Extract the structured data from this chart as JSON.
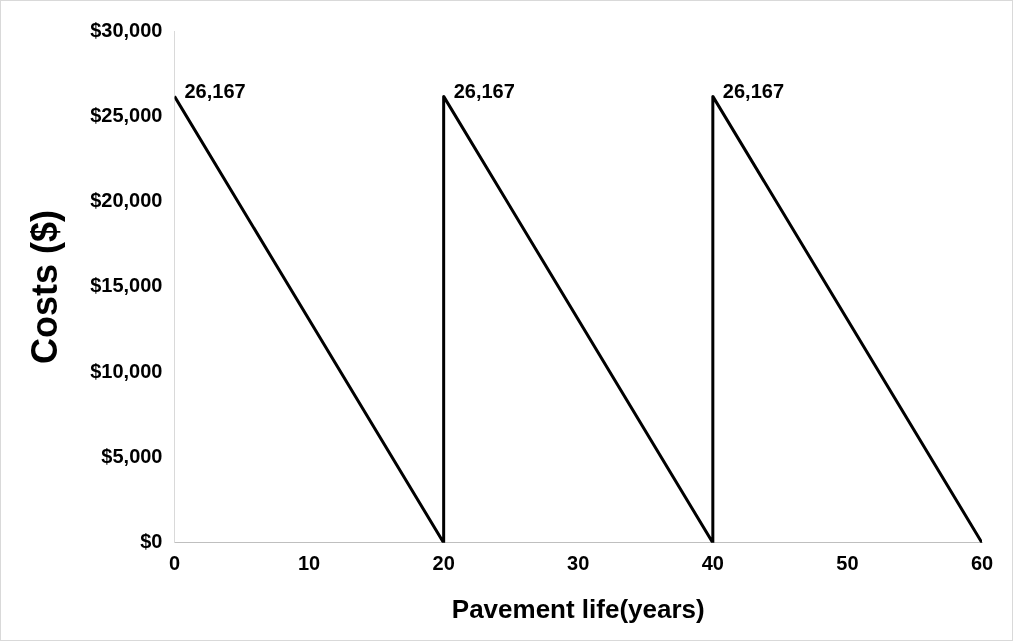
{
  "chart_data": {
    "type": "line",
    "xlabel": "Pavement life(years)",
    "ylabel": "Costs ($)",
    "x": [
      0,
      20,
      20,
      40,
      40,
      60
    ],
    "series": [
      {
        "color": "#000000",
        "values": [
          26167,
          0,
          26167,
          0,
          26167,
          0
        ]
      }
    ],
    "xlim": [
      0,
      60
    ],
    "xticks": [
      0,
      10,
      20,
      30,
      40,
      50,
      60
    ],
    "ylim": [
      0,
      30000
    ],
    "yticks": [
      {
        "value": 0,
        "label": "$0"
      },
      {
        "value": 5000,
        "label": "$5,000"
      },
      {
        "value": 10000,
        "label": "$10,000"
      },
      {
        "value": 15000,
        "label": "$15,000"
      },
      {
        "value": 20000,
        "label": "$20,000"
      },
      {
        "value": 25000,
        "label": "$25,000"
      },
      {
        "value": 30000,
        "label": "$30,000"
      }
    ],
    "grid": false,
    "legend": false,
    "marker": "none",
    "line_style": "solid",
    "annotations": [
      {
        "text": "26,167",
        "x": 0,
        "y": 26167
      },
      {
        "text": "26,167",
        "x": 20,
        "y": 26167
      },
      {
        "text": "26,167",
        "x": 40,
        "y": 26167
      }
    ]
  }
}
